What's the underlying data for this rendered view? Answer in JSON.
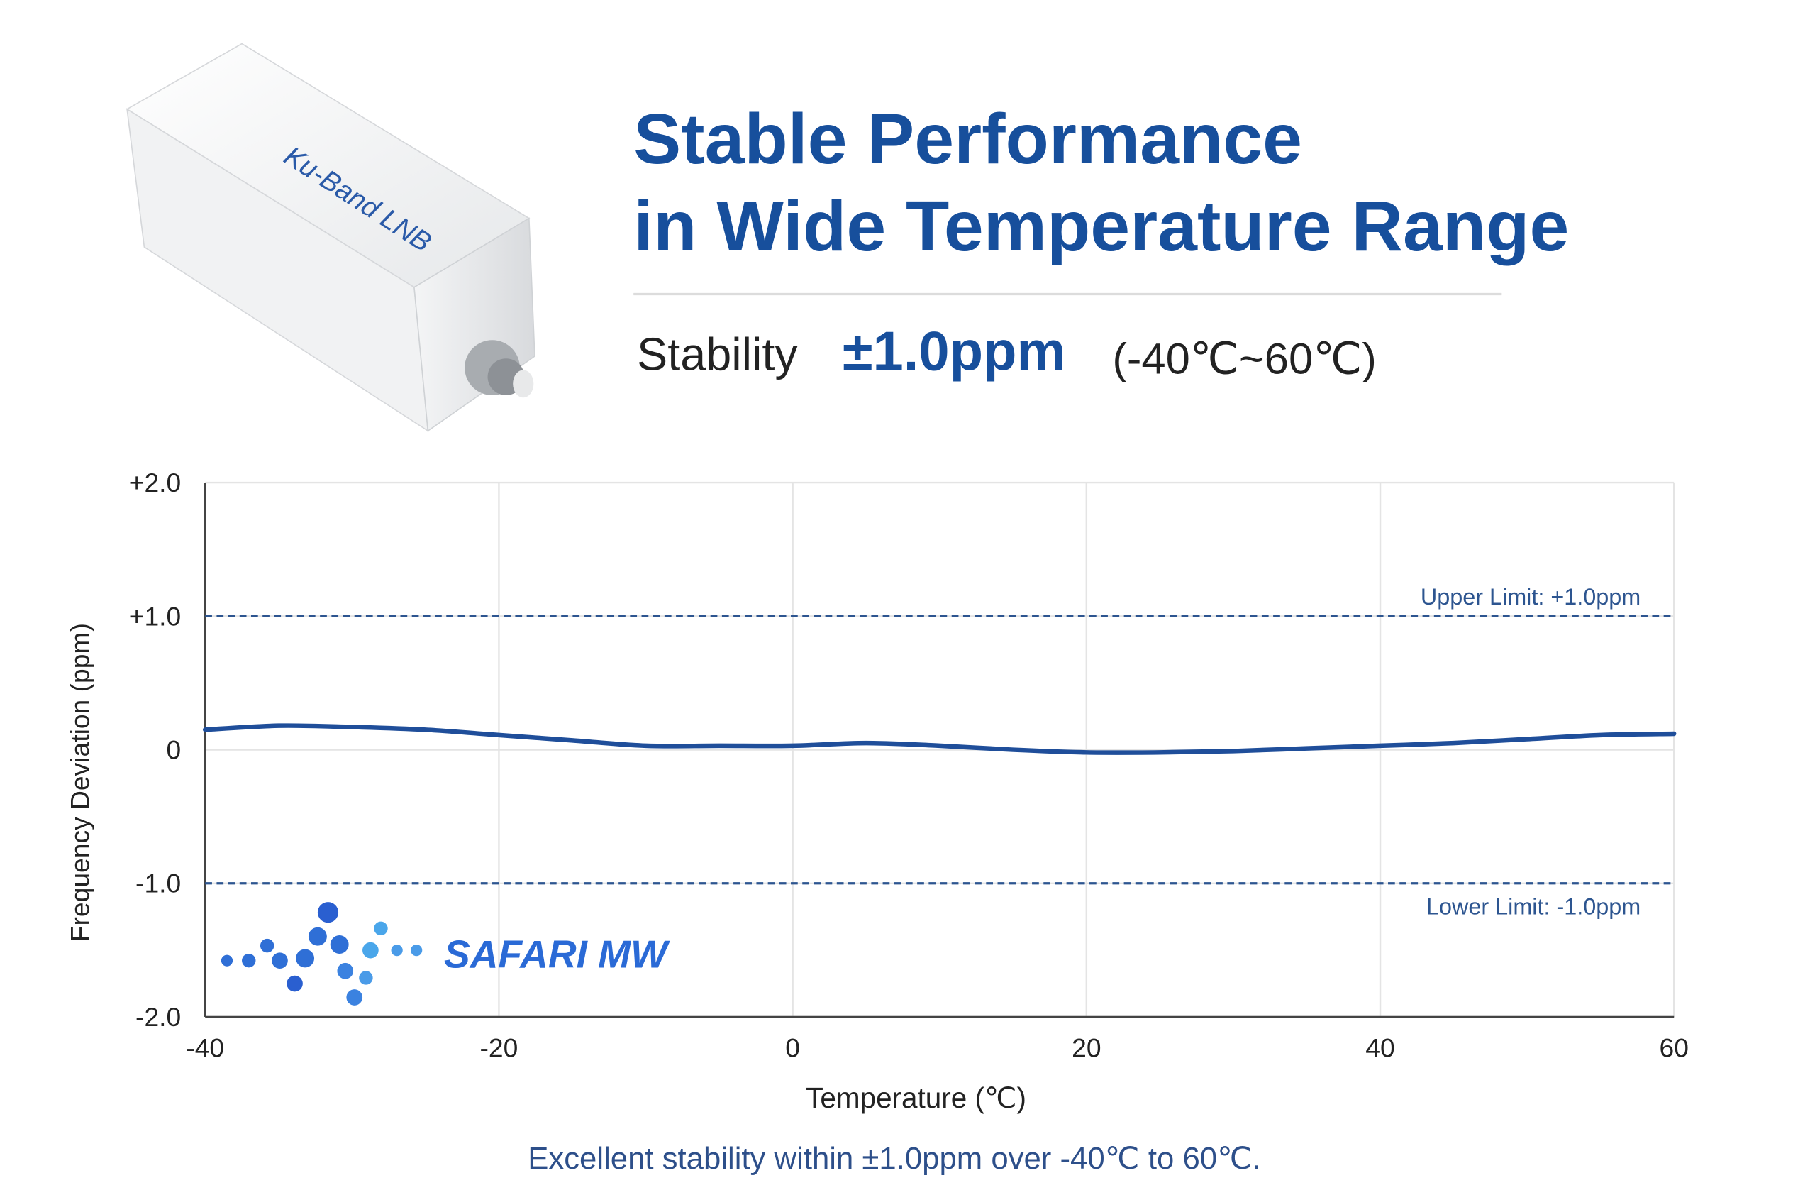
{
  "header": {
    "title_lines": [
      "Stable Performance",
      "in Wide Temperature Range"
    ],
    "stability_label": "Stability",
    "stability_value": "±1.0ppm",
    "stability_range": "(-40℃~60℃)"
  },
  "product": {
    "label": "Ku-Band LNB"
  },
  "logo": {
    "text": "SAFARI MW"
  },
  "chart_data": {
    "type": "line",
    "x_label": "Temperature (℃)",
    "y_label": "Frequency Deviation (ppm)",
    "x": [
      -40,
      -35,
      -30,
      -25,
      -20,
      -15,
      -10,
      -5,
      0,
      5,
      10,
      15,
      20,
      25,
      30,
      35,
      40,
      45,
      50,
      55,
      60
    ],
    "values": [
      0.15,
      0.18,
      0.17,
      0.15,
      0.11,
      0.07,
      0.03,
      0.03,
      0.03,
      0.05,
      0.03,
      0,
      -0.02,
      -0.02,
      -0.01,
      0.01,
      0.03,
      0.05,
      0.08,
      0.11,
      0.12
    ],
    "color": "#1f4e9a",
    "xlim": [
      -40,
      60
    ],
    "ylim": [
      -2,
      2
    ],
    "xticks": [
      -40,
      -20,
      0,
      20,
      40,
      60
    ],
    "yticks": [
      {
        "value": 2,
        "label": "+2.0"
      },
      {
        "value": 1,
        "label": "+1.0"
      },
      0,
      {
        "value": -1,
        "label": "-1.0"
      },
      {
        "value": -2,
        "label": "-2.0"
      }
    ],
    "reference_lines": [
      {
        "value": 1,
        "label": "Upper Limit: +1.0ppm"
      },
      {
        "value": -1,
        "label": "Lower Limit: -1.0ppm"
      }
    ],
    "grid": true
  },
  "caption": "Excellent stability within ±1.0ppm over -40℃ to 60℃."
}
